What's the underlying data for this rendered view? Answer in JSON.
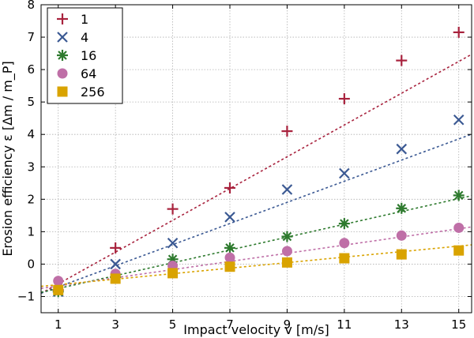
{
  "chart_data": {
    "type": "scatter",
    "title": "",
    "xlabel": "Impact velocity v [m/s]",
    "ylabel": "Erosion efficiency ε [Δm / m_P]",
    "xlim": [
      0.4,
      15.45
    ],
    "ylim": [
      -1.5,
      8
    ],
    "xticks": [
      1,
      3,
      5,
      7,
      9,
      11,
      13,
      15
    ],
    "yticks": [
      -1,
      0,
      1,
      2,
      3,
      4,
      5,
      6,
      7,
      8
    ],
    "grid": true,
    "legend_position": "top-left",
    "x": [
      1,
      3,
      5,
      7,
      9,
      11,
      13,
      15
    ],
    "series": [
      {
        "name": "1",
        "marker": "plus",
        "color": "#a8223d",
        "values": [
          -0.8,
          0.5,
          1.7,
          2.35,
          4.1,
          5.1,
          6.28,
          7.15
        ],
        "fit": [
          -1.1,
          0.49
        ]
      },
      {
        "name": "4",
        "marker": "x",
        "color": "#3b5993",
        "values": [
          -0.85,
          0.0,
          0.65,
          1.45,
          2.3,
          2.8,
          3.55,
          4.45
        ],
        "fit": [
          -1.03,
          0.326
        ]
      },
      {
        "name": "16",
        "marker": "star",
        "color": "#2e7a2e",
        "values": [
          -0.85,
          -0.4,
          0.15,
          0.5,
          0.85,
          1.25,
          1.72,
          2.12
        ],
        "fit": [
          -0.95,
          0.198
        ]
      },
      {
        "name": "64",
        "marker": "circle",
        "color": "#bf6fa7",
        "values": [
          -0.52,
          -0.3,
          -0.05,
          0.2,
          0.4,
          0.65,
          0.88,
          1.12
        ],
        "fit": [
          -0.8,
          0.126
        ]
      },
      {
        "name": "256",
        "marker": "square",
        "color": "#d9a300",
        "values": [
          -0.8,
          -0.45,
          -0.28,
          -0.08,
          0.05,
          0.18,
          0.3,
          0.42
        ],
        "fit": [
          -0.72,
          0.085
        ]
      }
    ]
  }
}
